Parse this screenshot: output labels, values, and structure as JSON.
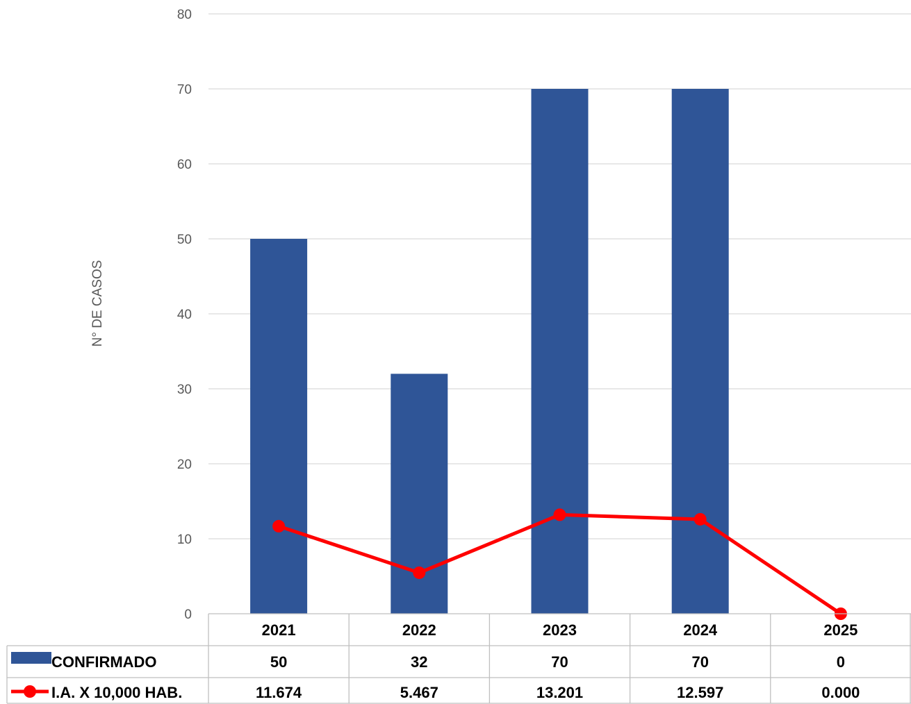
{
  "chart_data": {
    "type": "bar",
    "categories": [
      "2021",
      "2022",
      "2023",
      "2024",
      "2025"
    ],
    "ylabel": "N° DE CASOS",
    "ylim": [
      0,
      80
    ],
    "yticks": [
      0,
      10,
      20,
      30,
      40,
      50,
      60,
      70,
      80
    ],
    "grid": true,
    "legend": "data-table",
    "series": [
      {
        "name": "CONFIRMADO",
        "type": "bar",
        "color": "#2F5597",
        "values": [
          50,
          32,
          70,
          70,
          0
        ],
        "labels": [
          "50",
          "32",
          "70",
          "70",
          "0"
        ]
      },
      {
        "name": "I.A. X 10,000 HAB.",
        "type": "line",
        "color": "#FF0000",
        "values": [
          11.674,
          5.467,
          13.201,
          12.597,
          0.0
        ],
        "labels": [
          "11.674",
          "5.467",
          "13.201",
          "12.597",
          "0.000"
        ]
      }
    ]
  }
}
